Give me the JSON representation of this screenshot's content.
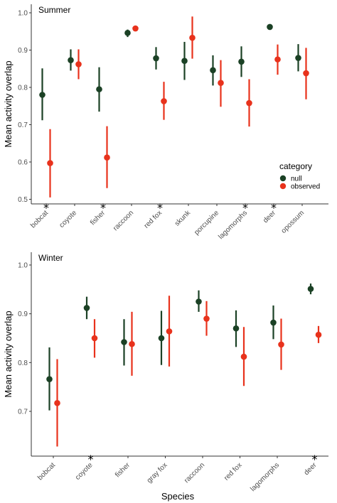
{
  "colors": {
    "null": "#1b4125",
    "observed": "#e8321c",
    "axis": "#333333"
  },
  "x_axis_title": "Species",
  "legend": {
    "title": "category",
    "items": [
      "null",
      "observed"
    ]
  },
  "chart_data": [
    {
      "type": "scatter",
      "title": "Summer",
      "ylabel": "Mean activity overlap",
      "ylim": [
        0.48,
        1.02
      ],
      "yticks": [
        "0.5",
        "0.6",
        "0.7",
        "0.8",
        "0.9",
        "1.0"
      ],
      "categories": [
        "bobcat",
        "coyote",
        "fisher",
        "raccoon",
        "red fox",
        "skunk",
        "porcupine",
        "lagomorphs",
        "deer",
        "opossum"
      ],
      "series": [
        {
          "name": "null",
          "values": [
            0.78,
            0.873,
            0.795,
            0.946,
            0.878,
            0.871,
            0.846,
            0.869,
            0.962,
            0.879
          ],
          "lower": [
            0.712,
            0.845,
            0.735,
            0.935,
            0.848,
            0.82,
            0.805,
            0.828,
            0.958,
            0.843
          ],
          "upper": [
            0.851,
            0.902,
            0.854,
            0.955,
            0.908,
            0.922,
            0.886,
            0.91,
            0.967,
            0.916
          ]
        },
        {
          "name": "observed",
          "values": [
            0.597,
            0.862,
            0.612,
            0.958,
            0.763,
            0.933,
            0.812,
            0.758,
            0.875,
            0.838
          ],
          "lower": [
            0.505,
            0.822,
            0.53,
            0.958,
            0.713,
            0.877,
            0.748,
            0.695,
            0.834,
            0.768
          ],
          "upper": [
            0.688,
            0.902,
            0.696,
            0.958,
            0.815,
            0.99,
            0.873,
            0.822,
            0.915,
            0.906
          ]
        }
      ],
      "significant": [
        true,
        false,
        true,
        false,
        true,
        false,
        false,
        true,
        true,
        false
      ],
      "significance_marker": "*"
    },
    {
      "type": "scatter",
      "title": "Winter",
      "ylabel": "Mean activity overlap",
      "ylim": [
        0.6,
        1.02
      ],
      "yticks": [
        "0.7",
        "0.8",
        "0.9",
        "1.0"
      ],
      "categories": [
        "bobcat",
        "coyote",
        "fisher",
        "gray fox",
        "raccoon",
        "red fox",
        "lagomorphs",
        "deer"
      ],
      "series": [
        {
          "name": "null",
          "values": [
            0.766,
            0.912,
            0.842,
            0.85,
            0.925,
            0.87,
            0.882,
            0.951
          ],
          "lower": [
            0.702,
            0.889,
            0.794,
            0.795,
            0.904,
            0.832,
            0.848,
            0.94
          ],
          "upper": [
            0.831,
            0.935,
            0.889,
            0.906,
            0.948,
            0.907,
            0.917,
            0.962
          ]
        },
        {
          "name": "observed",
          "values": [
            0.717,
            0.85,
            0.838,
            0.864,
            0.89,
            0.812,
            0.837,
            0.857
          ],
          "lower": [
            0.628,
            0.81,
            0.773,
            0.792,
            0.855,
            0.752,
            0.785,
            0.84
          ],
          "upper": [
            0.807,
            0.889,
            0.904,
            0.937,
            0.926,
            0.873,
            0.89,
            0.875
          ]
        }
      ],
      "significant": [
        false,
        true,
        false,
        false,
        false,
        false,
        false,
        true
      ],
      "significance_marker": "*"
    }
  ]
}
